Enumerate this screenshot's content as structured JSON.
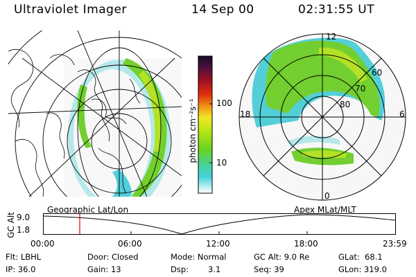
{
  "header": {
    "title": "Ultraviolet Imager",
    "date": "14 Sep 00",
    "time": "02:31:55 UT"
  },
  "colorbar": {
    "unit_label": "photon cm⁻²s⁻¹",
    "ticks": [
      "100",
      "10"
    ]
  },
  "polar": {
    "lat_labels": [
      "60",
      "70",
      "80"
    ],
    "mlt_labels": [
      "12",
      "18",
      "6",
      "0"
    ]
  },
  "timeline": {
    "left_label": "Geographic Lat/Lon",
    "right_label": "Apex MLat/MLT",
    "axis_label": "GC Alt",
    "y_ticks": [
      "9.0",
      "1.8"
    ],
    "x_ticks": [
      "00:00",
      "06:00",
      "12:00",
      "18:00",
      "23:59"
    ],
    "marker_color": "#e00000"
  },
  "info": {
    "filter": "Flt: LBHL",
    "ip": "IP: 36.0",
    "door": "Door: Closed",
    "gain": "Gain: 13",
    "mode": "Mode: Normal",
    "dsp_label": "Dsp:",
    "dsp_value": "3.1",
    "gc_alt": "GC Alt: 9.0 Re",
    "seq": "Seq: 39",
    "glat": "GLat:  68.1",
    "glon": "GLon: 319.0"
  },
  "colors": {
    "green": "#6ad21e",
    "yellow_green": "#b4e614",
    "cyan": "#46d2dc",
    "pale_cyan": "#b4eef0"
  }
}
